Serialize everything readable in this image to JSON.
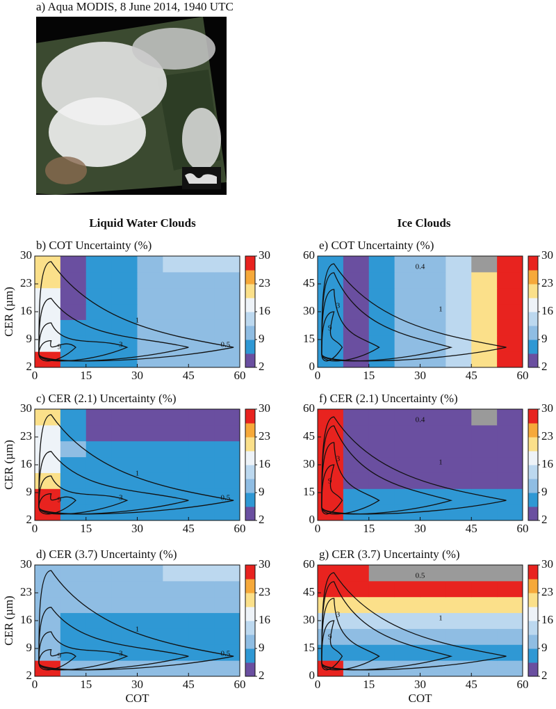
{
  "image_title": "a) Aqua MODIS, 8 June 2014, 1940 UTC",
  "headers": [
    "Liquid Water Clouds",
    "Ice Clouds"
  ],
  "colorbar": {
    "zlim": [
      2,
      30
    ],
    "ticks": [
      2,
      9,
      16,
      23,
      30
    ],
    "colors": [
      "#6a4fa0",
      "#2f98d4",
      "#8fbde3",
      "#bcd8ef",
      "#eef3f8",
      "#fbe08a",
      "#f6a93a",
      "#e8231f"
    ],
    "missing_color": "#9a9a9a"
  },
  "chart_data": [
    {
      "type": "heatmap",
      "title": "b) COT Uncertainty (%)",
      "ylabel": "CER (µm)",
      "xlim": [
        0,
        60
      ],
      "xticks": [
        0,
        15,
        30,
        45,
        60
      ],
      "ylim": [
        2,
        30
      ],
      "yticks": [
        2,
        9,
        16,
        23,
        30
      ],
      "contour_labels": [
        "0.5",
        "1",
        "3",
        "9"
      ],
      "z": [
        [
          29,
          7,
          7,
          7,
          11,
          11,
          11,
          11
        ],
        [
          18,
          7,
          7,
          7,
          11,
          11,
          11,
          11
        ],
        [
          18,
          7,
          7,
          7,
          11,
          11,
          11,
          11
        ],
        [
          18,
          3,
          7,
          7,
          11,
          11,
          11,
          11
        ],
        [
          18,
          3,
          7,
          7,
          11,
          11,
          11,
          11
        ],
        [
          21,
          3,
          7,
          7,
          11,
          11,
          11,
          11
        ],
        [
          21,
          3,
          7,
          7,
          11,
          14,
          14,
          14
        ]
      ]
    },
    {
      "type": "heatmap",
      "title": "c) CER (2.1) Uncertainty (%)",
      "ylabel": "CER (µm)",
      "xlim": [
        0,
        60
      ],
      "xticks": [
        0,
        15,
        30,
        45,
        60
      ],
      "ylim": [
        2,
        30
      ],
      "yticks": [
        2,
        9,
        16,
        23,
        30
      ],
      "contour_labels": [
        "0.5",
        "1",
        "3",
        "9"
      ],
      "z": [
        [
          29,
          7,
          7,
          7,
          7,
          7,
          7,
          7
        ],
        [
          29,
          7,
          7,
          7,
          7,
          7,
          7,
          7
        ],
        [
          21,
          7,
          7,
          7,
          7,
          7,
          7,
          7
        ],
        [
          18,
          7,
          7,
          7,
          7,
          7,
          7,
          7
        ],
        [
          18,
          11,
          7,
          7,
          7,
          7,
          7,
          7
        ],
        [
          18,
          7,
          3,
          3,
          3,
          3,
          3,
          3
        ],
        [
          21,
          7,
          3,
          3,
          3,
          3,
          3,
          3
        ]
      ]
    },
    {
      "type": "heatmap",
      "title": "d) CER (3.7) Uncertainty (%)",
      "ylabel": "CER (µm)",
      "xlabel": "COT",
      "xlim": [
        0,
        60
      ],
      "xticks": [
        0,
        15,
        30,
        45,
        60
      ],
      "ylim": [
        2,
        30
      ],
      "yticks": [
        2,
        9,
        16,
        23,
        30
      ],
      "contour_labels": [
        "0.5",
        "1",
        "3",
        "9"
      ],
      "z": [
        [
          29,
          11,
          11,
          11,
          11,
          11,
          11,
          11
        ],
        [
          11,
          7,
          7,
          7,
          7,
          7,
          7,
          7
        ],
        [
          11,
          7,
          7,
          7,
          7,
          7,
          7,
          7
        ],
        [
          11,
          7,
          7,
          7,
          7,
          7,
          7,
          7
        ],
        [
          11,
          11,
          11,
          11,
          11,
          11,
          11,
          11
        ],
        [
          11,
          11,
          11,
          11,
          11,
          11,
          11,
          11
        ],
        [
          11,
          11,
          11,
          11,
          11,
          14,
          14,
          14
        ]
      ]
    },
    {
      "type": "heatmap",
      "title": "e) COT Uncertainty (%)",
      "xlim": [
        0,
        60
      ],
      "xticks": [
        0,
        15,
        30,
        45,
        60
      ],
      "ylim": [
        0,
        60
      ],
      "yticks": [
        0,
        15,
        30,
        45,
        60
      ],
      "contour_labels": [
        "0.4",
        "1",
        "3",
        "9"
      ],
      "z": [
        [
          7,
          3,
          7,
          11,
          11,
          14,
          21,
          29
        ],
        [
          7,
          3,
          7,
          11,
          11,
          14,
          21,
          29
        ],
        [
          7,
          3,
          7,
          11,
          11,
          14,
          21,
          29
        ],
        [
          7,
          3,
          7,
          11,
          11,
          14,
          21,
          29
        ],
        [
          7,
          3,
          7,
          11,
          11,
          14,
          21,
          29
        ],
        [
          7,
          3,
          7,
          11,
          11,
          14,
          21,
          29
        ],
        [
          7,
          3,
          7,
          11,
          11,
          14,
          null,
          29
        ]
      ]
    },
    {
      "type": "heatmap",
      "title": "f) CER (2.1) Uncertainty (%)",
      "xlim": [
        0,
        60
      ],
      "xticks": [
        0,
        15,
        30,
        45,
        60
      ],
      "ylim": [
        0,
        60
      ],
      "yticks": [
        0,
        15,
        30,
        45,
        60
      ],
      "contour_labels": [
        "0.4",
        "1",
        "3",
        "9"
      ],
      "z": [
        [
          29,
          7,
          7,
          7,
          7,
          7,
          7,
          7
        ],
        [
          29,
          7,
          7,
          7,
          7,
          7,
          7,
          7
        ],
        [
          29,
          3,
          3,
          3,
          3,
          3,
          3,
          3
        ],
        [
          29,
          3,
          3,
          3,
          3,
          3,
          3,
          3
        ],
        [
          29,
          3,
          3,
          3,
          3,
          3,
          3,
          3
        ],
        [
          29,
          3,
          3,
          3,
          3,
          3,
          3,
          3
        ],
        [
          29,
          3,
          3,
          3,
          3,
          3,
          null,
          3
        ]
      ]
    },
    {
      "type": "heatmap",
      "title": "g) CER (3.7) Uncertainty (%)",
      "xlabel": "COT",
      "xlim": [
        0,
        60
      ],
      "xticks": [
        0,
        15,
        30,
        45,
        60
      ],
      "ylim": [
        0,
        60
      ],
      "yticks": [
        0,
        15,
        30,
        45,
        60
      ],
      "contour_labels": [
        "0.5",
        "1",
        "3",
        "9"
      ],
      "z": [
        [
          29,
          11,
          11,
          11,
          11,
          11,
          11,
          11
        ],
        [
          7,
          7,
          7,
          7,
          7,
          7,
          7,
          7
        ],
        [
          11,
          11,
          11,
          11,
          11,
          11,
          11,
          11
        ],
        [
          14,
          14,
          14,
          14,
          14,
          14,
          14,
          14
        ],
        [
          21,
          21,
          21,
          21,
          21,
          21,
          21,
          21
        ],
        [
          29,
          29,
          29,
          29,
          29,
          29,
          29,
          29
        ],
        [
          29,
          29,
          null,
          null,
          null,
          null,
          null,
          null
        ]
      ]
    }
  ]
}
